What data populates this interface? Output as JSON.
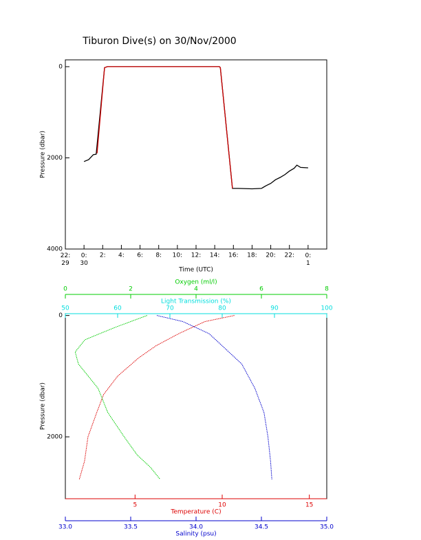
{
  "chart_data": [
    {
      "type": "line",
      "title": "Tiburon Dive(s) on 30/Nov/2000",
      "x_label": "Time (UTC)",
      "y_label": "Pressure (dbar)",
      "xlim": [
        -2,
        26
      ],
      "xticks": [
        {
          "value": -2,
          "label": "22:\n29"
        },
        {
          "value": 0,
          "label": "0:\n30"
        },
        {
          "value": 2,
          "label": "2:"
        },
        {
          "value": 4,
          "label": "4:"
        },
        {
          "value": 6,
          "label": "6:"
        },
        {
          "value": 8,
          "label": "8:"
        },
        {
          "value": 10,
          "label": "10:"
        },
        {
          "value": 12,
          "label": "12:"
        },
        {
          "value": 14,
          "label": "14:"
        },
        {
          "value": 16,
          "label": "16:"
        },
        {
          "value": 18,
          "label": "18:"
        },
        {
          "value": 20,
          "label": "20:"
        },
        {
          "value": 22,
          "label": "22:"
        },
        {
          "value": 24,
          "label": "0:\n1"
        }
      ],
      "ylim": [
        4000,
        -150
      ],
      "yticks": [
        0,
        2000,
        4000
      ],
      "series": [
        {
          "color": "#000000",
          "x": [
            0,
            0.5,
            0.9,
            1.0,
            1.3,
            1.5,
            2.2,
            2.5,
            6,
            10,
            14.5,
            14.6,
            15.9,
            16.5,
            18,
            19,
            19.5,
            20,
            20.5,
            21,
            21.5,
            22,
            22.5,
            22.8,
            23.2,
            24
          ],
          "values": [
            2080,
            2040,
            1950,
            1930,
            1920,
            1500,
            20,
            0,
            0,
            0,
            0,
            20,
            2670,
            2670,
            2680,
            2670,
            2610,
            2560,
            2480,
            2430,
            2370,
            2290,
            2230,
            2160,
            2210,
            2220
          ]
        },
        {
          "color": "#cc0000",
          "x": [
            1.4,
            2.2,
            2.5,
            14.5,
            14.6,
            15.9
          ],
          "values": [
            1900,
            20,
            0,
            0,
            20,
            2670
          ]
        }
      ]
    },
    {
      "type": "profile",
      "y_label": "Pressure (dbar)",
      "ylim": [
        3020,
        -30
      ],
      "yticks": [
        0,
        2000
      ],
      "x_axes": [
        {
          "label": "Oxygen (ml/l)",
          "color": "#00cc00",
          "position": "top",
          "xlim": [
            0,
            8
          ],
          "xticks": [
            0,
            2,
            4,
            6,
            8
          ]
        },
        {
          "label": "Light Transmission (%)",
          "color": "#00dddd",
          "position": "top",
          "xlim": [
            50,
            100
          ],
          "xticks": [
            50,
            60,
            70,
            80,
            90,
            100
          ]
        },
        {
          "label": "Temperature (C)",
          "color": "#dd0000",
          "position": "bottom",
          "xlim": [
            1,
            16
          ],
          "xticks": [
            5,
            10,
            15
          ]
        },
        {
          "label": "Salinity (psu)",
          "color": "#0000cc",
          "position": "bottom",
          "xlim": [
            33,
            35
          ],
          "xticks": [
            {
              "value": 33,
              "label": "33.0"
            },
            {
              "value": 33.5,
              "label": "33.5"
            },
            {
              "value": 34,
              "label": "34.0"
            },
            {
              "value": 34.5,
              "label": "34.5"
            },
            {
              "value": 35,
              "label": "35.0"
            }
          ]
        }
      ],
      "series": [
        {
          "axis": 2,
          "color": "#dd0000",
          "x": [
            10.7,
            9.0,
            7.5,
            6.2,
            5.2,
            4.0,
            3.2,
            2.8,
            2.3,
            2.1,
            1.8
          ],
          "values": [
            0,
            100,
            300,
            500,
            700,
            1000,
            1300,
            1600,
            2000,
            2400,
            2700
          ]
        },
        {
          "axis": 3,
          "color": "#0000cc",
          "x": [
            33.7,
            33.9,
            34.1,
            34.2,
            34.35,
            34.45,
            34.52,
            34.55,
            34.57,
            34.58
          ],
          "values": [
            0,
            100,
            300,
            500,
            800,
            1200,
            1600,
            2000,
            2400,
            2700
          ]
        },
        {
          "axis": 0,
          "color": "#00cc00",
          "x": [
            2.5,
            1.5,
            0.6,
            0.3,
            0.4,
            0.7,
            1.0,
            1.3,
            1.8,
            2.2,
            2.6,
            2.9
          ],
          "values": [
            0,
            200,
            400,
            600,
            800,
            1000,
            1200,
            1600,
            2000,
            2300,
            2500,
            2700
          ]
        }
      ]
    }
  ]
}
